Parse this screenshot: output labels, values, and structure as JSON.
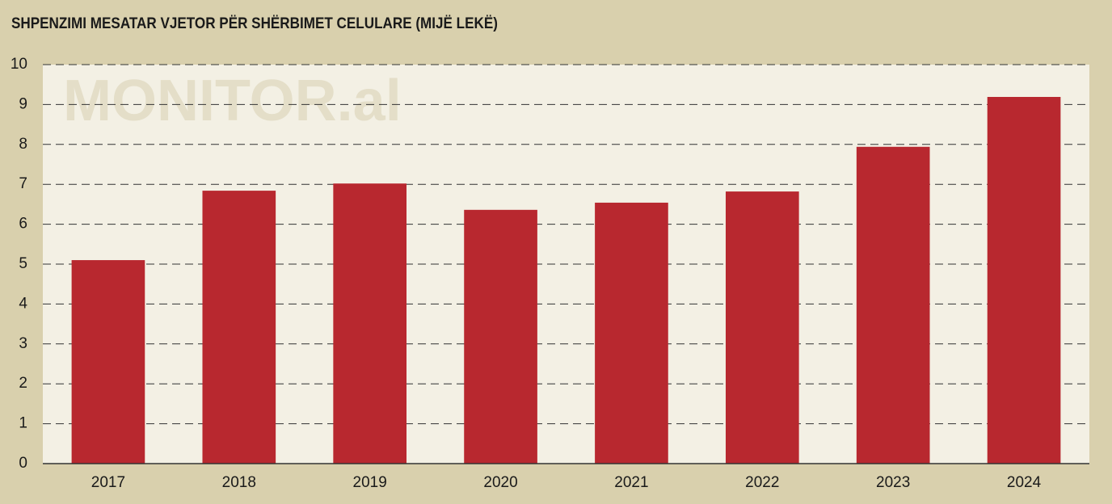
{
  "chart_data": {
    "type": "bar",
    "title": "SHPENZIMI MESATAR VJETOR PËR SHËRBIMET CELULARE (MIJË LEKË)",
    "watermark": "MONITOR.al",
    "categories": [
      "2017",
      "2018",
      "2019",
      "2020",
      "2021",
      "2022",
      "2023",
      "2024"
    ],
    "values": [
      5.1,
      6.84,
      7.02,
      6.36,
      6.54,
      6.82,
      7.94,
      9.19
    ],
    "color": "#b8282f",
    "ylim": [
      0,
      10
    ],
    "yticks": [
      0,
      1,
      2,
      3,
      4,
      5,
      6,
      7,
      8,
      9,
      10
    ],
    "grid": true
  }
}
